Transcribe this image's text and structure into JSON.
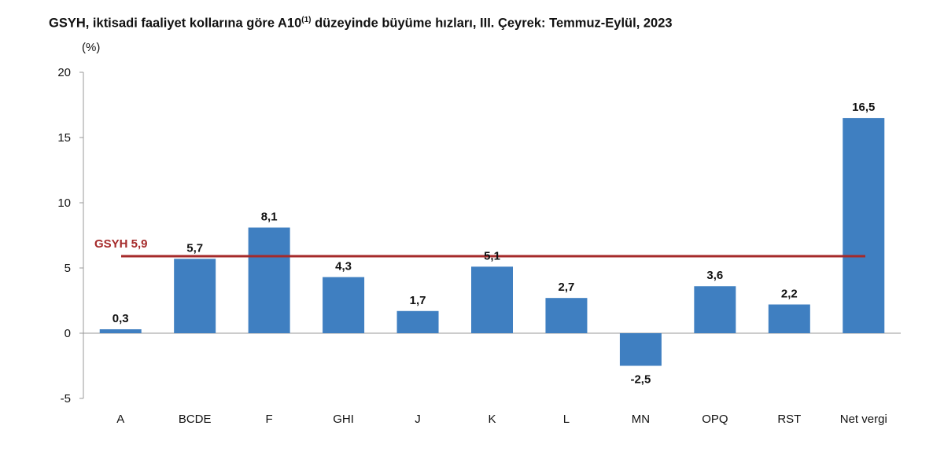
{
  "title_main": "GSYH, iktisadi faaliyet kollarına göre A10",
  "title_sup": "(1)",
  "title_rest": " düzeyinde büyüme hızları, III. Çeyrek: Temmuz-Eylül, 2023",
  "chart_data": {
    "type": "bar",
    "ylabel": "(%)",
    "ylim": [
      -5,
      20
    ],
    "yticks": [
      -5,
      0,
      5,
      10,
      15,
      20
    ],
    "categories": [
      "A",
      "BCDE",
      "F",
      "GHI",
      "J",
      "K",
      "L",
      "MN",
      "OPQ",
      "RST",
      "Net vergi"
    ],
    "values": [
      0.3,
      5.7,
      8.1,
      4.3,
      1.7,
      5.1,
      2.7,
      -2.5,
      3.6,
      2.2,
      16.5
    ],
    "value_labels": [
      "0,3",
      "5,7",
      "8,1",
      "4,3",
      "1,7",
      "5,1",
      "2,7",
      "-2,5",
      "3,6",
      "2,2",
      "16,5"
    ],
    "reference_line": {
      "label": "GSYH 5,9",
      "value": 5.9,
      "color": "#a52a2a"
    },
    "bar_color": "#3f7fc1",
    "grid": false,
    "legend": "none"
  }
}
